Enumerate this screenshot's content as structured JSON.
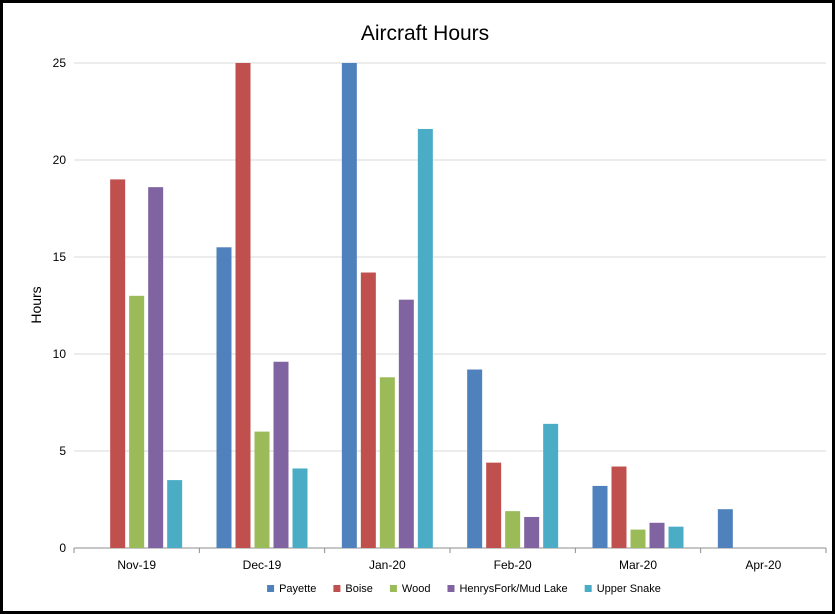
{
  "chart_data": {
    "type": "bar",
    "title": "Aircraft Hours",
    "xlabel": "",
    "ylabel": "Hours",
    "ylim": [
      0,
      25
    ],
    "yticks": [
      0,
      5,
      10,
      15,
      20,
      25
    ],
    "grid": true,
    "legend_position": "bottom",
    "categories": [
      "Nov-19",
      "Dec-19",
      "Jan-20",
      "Feb-20",
      "Mar-20",
      "Apr-20"
    ],
    "series": [
      {
        "name": "Payette",
        "color": "#4F81BD",
        "values": [
          null,
          15.5,
          25,
          9.2,
          3.2,
          2.0
        ]
      },
      {
        "name": "Boise",
        "color": "#C0504D",
        "values": [
          19.0,
          25,
          14.2,
          4.4,
          4.2,
          null
        ]
      },
      {
        "name": "Wood",
        "color": "#9BBB59",
        "values": [
          13.0,
          6.0,
          8.8,
          1.9,
          0.95,
          null
        ]
      },
      {
        "name": "HenrysFork/Mud Lake",
        "color": "#8064A2",
        "values": [
          18.6,
          9.6,
          12.8,
          1.6,
          1.3,
          null
        ]
      },
      {
        "name": "Upper Snake",
        "color": "#4BACC6",
        "values": [
          3.5,
          4.1,
          21.6,
          6.4,
          1.1,
          null
        ]
      }
    ]
  }
}
